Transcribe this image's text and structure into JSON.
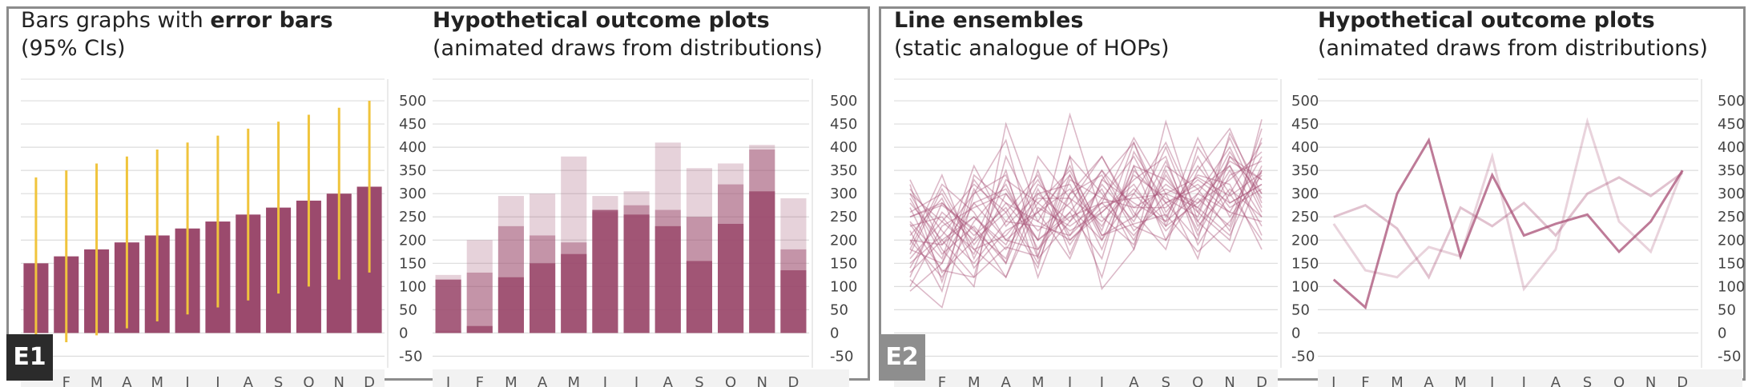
{
  "colors": {
    "bar": "#9b4a6d",
    "error_bar": "#f0c43c",
    "line": "#a84f75",
    "grid": "#dcdcdc",
    "axis_band": "#f2f2f2"
  },
  "badges": {
    "e1": "E1",
    "e2": "E2"
  },
  "panels": {
    "e1_left": {
      "title_a": "Bars graphs with ",
      "title_b": "error bars",
      "title_c": "(95% CIs)"
    },
    "e1_right": {
      "title_a": "Hypothetical outcome plots",
      "title_b": "(animated draws from distributions)"
    },
    "e2_left": {
      "title_a": "Line ensembles",
      "title_b": "(static analogue of HOPs)"
    },
    "e2_right": {
      "title_a": "Hypothetical outcome plots",
      "title_b": "(animated draws from distributions)"
    }
  },
  "chart_data": [
    {
      "type": "bar",
      "id": "e1-error-bars",
      "categories": [
        "J",
        "F",
        "M",
        "A",
        "M",
        "J",
        "J",
        "A",
        "S",
        "O",
        "N",
        "D"
      ],
      "values": [
        150,
        165,
        180,
        195,
        210,
        225,
        240,
        255,
        270,
        285,
        300,
        315
      ],
      "ci_lower": [
        -45,
        -20,
        -5,
        10,
        25,
        40,
        55,
        70,
        85,
        100,
        115,
        130
      ],
      "ci_upper": [
        335,
        350,
        365,
        380,
        395,
        410,
        425,
        440,
        455,
        470,
        485,
        500
      ],
      "yticks": [
        -50,
        0,
        50,
        100,
        150,
        200,
        250,
        300,
        350,
        400,
        450,
        500
      ],
      "ylim": [
        -75,
        550
      ],
      "grid": true
    },
    {
      "type": "bar",
      "id": "e1-hops",
      "categories": [
        "J",
        "F",
        "M",
        "A",
        "M",
        "J",
        "J",
        "A",
        "S",
        "O",
        "N",
        "D"
      ],
      "draws": [
        [
          115,
          15,
          120,
          150,
          170,
          265,
          255,
          230,
          155,
          235,
          305,
          135
        ],
        [
          5,
          130,
          230,
          210,
          195,
          260,
          275,
          265,
          250,
          320,
          395,
          180
        ],
        [
          125,
          200,
          295,
          300,
          380,
          295,
          305,
          410,
          355,
          365,
          405,
          290
        ]
      ],
      "yticks": [
        -50,
        0,
        50,
        100,
        150,
        200,
        250,
        300,
        350,
        400,
        450,
        500
      ],
      "ylim": [
        -75,
        550
      ],
      "grid": true
    },
    {
      "type": "line",
      "id": "e2-ensemble",
      "x": [
        "J",
        "F",
        "M",
        "A",
        "M",
        "J",
        "J",
        "A",
        "S",
        "O",
        "N",
        "D"
      ],
      "series": [
        {
          "values": [
            115,
            55,
            300,
            415,
            165,
            340,
            210,
            235,
            255,
            175,
            240,
            350
          ]
        },
        {
          "values": [
            250,
            275,
            225,
            120,
            270,
            230,
            280,
            210,
            300,
            335,
            295,
            345
          ]
        },
        {
          "values": [
            235,
            135,
            120,
            185,
            165,
            380,
            95,
            180,
            455,
            240,
            175,
            350
          ]
        },
        {
          "values": [
            300,
            180,
            100,
            450,
            260,
            160,
            330,
            410,
            230,
            280,
            360,
            250
          ]
        },
        {
          "values": [
            180,
            320,
            260,
            150,
            380,
            290,
            120,
            350,
            280,
            200,
            430,
            300
          ]
        },
        {
          "values": [
            220,
            90,
            340,
            280,
            200,
            470,
            250,
            190,
            360,
            310,
            220,
            420
          ]
        },
        {
          "values": [
            140,
            260,
            200,
            350,
            120,
            300,
            380,
            260,
            180,
            400,
            300,
            200
          ]
        },
        {
          "values": [
            310,
            220,
            150,
            240,
            330,
            210,
            280,
            420,
            300,
            160,
            380,
            330
          ]
        },
        {
          "values": [
            90,
            150,
            280,
            200,
            260,
            340,
            200,
            300,
            410,
            260,
            200,
            460
          ]
        },
        {
          "values": [
            260,
            300,
            180,
            120,
            300,
            240,
            350,
            230,
            200,
            350,
            440,
            280
          ]
        },
        {
          "values": [
            200,
            120,
            240,
            320,
            180,
            260,
            160,
            390,
            280,
            320,
            260,
            380
          ]
        },
        {
          "values": [
            160,
            240,
            320,
            260,
            140,
            380,
            300,
            200,
            340,
            240,
            350,
            230
          ]
        },
        {
          "values": [
            280,
            200,
            120,
            380,
            240,
            200,
            260,
            330,
            380,
            190,
            300,
            410
          ]
        },
        {
          "values": [
            120,
            280,
            220,
            160,
            350,
            170,
            330,
            280,
            240,
            420,
            280,
            320
          ]
        },
        {
          "values": [
            240,
            160,
            360,
            230,
            300,
            320,
            180,
            360,
            200,
            300,
            400,
            260
          ]
        },
        {
          "values": [
            190,
            340,
            160,
            300,
            220,
            280,
            380,
            250,
            320,
            270,
            210,
            360
          ]
        },
        {
          "values": [
            330,
            190,
            250,
            180,
            280,
            350,
            220,
            410,
            260,
            340,
            320,
            180
          ]
        },
        {
          "values": [
            150,
            210,
            300,
            340,
            160,
            240,
            310,
            180,
            350,
            220,
            380,
            300
          ]
        },
        {
          "values": [
            270,
            130,
            200,
            260,
            340,
            200,
            270,
            300,
            230,
            380,
            250,
            340
          ]
        },
        {
          "values": [
            210,
            290,
            140,
            220,
            260,
            310,
            230,
            340,
            290,
            250,
            420,
            270
          ]
        },
        {
          "values": [
            100,
            230,
            270,
            300,
            200,
            260,
            350,
            270,
            310,
            280,
            330,
            390
          ]
        },
        {
          "values": [
            290,
            170,
            230,
            150,
            310,
            190,
            290,
            380,
            250,
            360,
            270,
            310
          ]
        },
        {
          "values": [
            170,
            310,
            190,
            280,
            240,
            360,
            210,
            250,
            400,
            230,
            310,
            250
          ]
        },
        {
          "values": [
            320,
            110,
            310,
            200,
            180,
            300,
            340,
            220,
            280,
            310,
            360,
            210
          ]
        },
        {
          "values": [
            230,
            250,
            170,
            330,
            280,
            220,
            260,
            320,
            220,
            290,
            230,
            440
          ]
        },
        {
          "values": [
            130,
            200,
            250,
            190,
            320,
            270,
            200,
            360,
            330,
            260,
            390,
            290
          ]
        },
        {
          "values": [
            250,
            280,
            210,
            270,
            150,
            330,
            290,
            270,
            270,
            330,
            280,
            320
          ]
        },
        {
          "values": [
            180,
            150,
            330,
            240,
            230,
            210,
            320,
            240,
            370,
            210,
            340,
            370
          ]
        },
        {
          "values": [
            300,
            240,
            180,
            210,
            290,
            290,
            240,
            310,
            240,
            300,
            260,
            240
          ]
        },
        {
          "values": [
            200,
            190,
            280,
            310,
            200,
            250,
            280,
            290,
            300,
            270,
            370,
            330
          ]
        }
      ],
      "yticks": [
        -50,
        0,
        50,
        100,
        150,
        200,
        250,
        300,
        350,
        400,
        450,
        500
      ],
      "ylim": [
        -75,
        550
      ],
      "grid": true
    },
    {
      "type": "line",
      "id": "e2-hops",
      "x": [
        "J",
        "F",
        "M",
        "A",
        "M",
        "J",
        "J",
        "A",
        "S",
        "O",
        "N",
        "D"
      ],
      "series": [
        {
          "values": [
            115,
            55,
            300,
            415,
            165,
            340,
            210,
            235,
            255,
            175,
            240,
            350
          ],
          "opacity": 0.75
        },
        {
          "values": [
            250,
            275,
            225,
            120,
            270,
            230,
            280,
            210,
            300,
            335,
            295,
            345
          ],
          "opacity": 0.35
        },
        {
          "values": [
            235,
            135,
            120,
            185,
            165,
            380,
            95,
            180,
            455,
            240,
            175,
            350
          ],
          "opacity": 0.25
        }
      ],
      "yticks": [
        -50,
        0,
        50,
        100,
        150,
        200,
        250,
        300,
        350,
        400,
        450,
        500
      ],
      "ylim": [
        -75,
        550
      ],
      "grid": true
    }
  ]
}
